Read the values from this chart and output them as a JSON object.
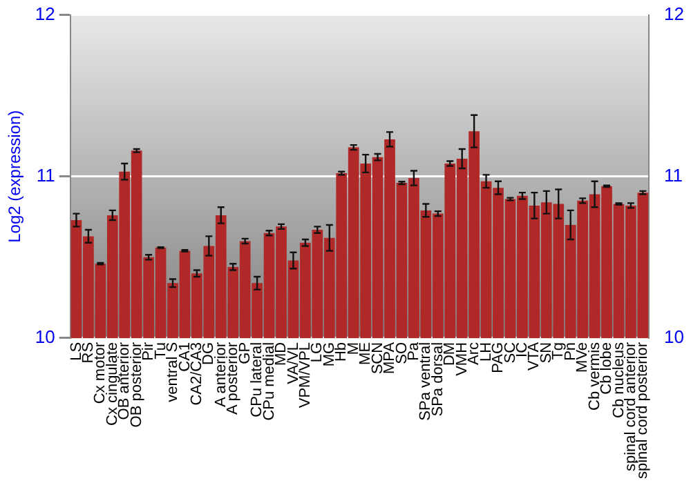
{
  "chart_data": {
    "type": "bar",
    "ylabel": "Log2 (expression)",
    "categories": [
      "LS",
      "RS",
      "Cx motor",
      "Cx cingulate",
      "OB anterior",
      "OB posterior",
      "Pir",
      "Tu",
      "ventral S",
      "CA1",
      "CA2/CA3",
      "DG",
      "A anterior",
      "A posterior",
      "GP",
      "CPu lateral",
      "CPu medial",
      "MD",
      "VA/VL",
      "VPM/VPL",
      "LG",
      "MG",
      "Hb",
      "M",
      "ME",
      "SCN",
      "MPA",
      "SO",
      "Pa",
      "SPa ventral",
      "SPa dorsal",
      "DM",
      "VMH",
      "Arc",
      "LH",
      "PAG",
      "SC",
      "IC",
      "VTA",
      "SN",
      "Tg",
      "Pn",
      "MVe",
      "Cb vermis",
      "Cb lobe",
      "Cb nucleus",
      "spinal cord anterior",
      "spinal cord posterior"
    ],
    "values": [
      10.73,
      10.63,
      10.46,
      10.76,
      11.03,
      11.16,
      10.5,
      10.56,
      10.34,
      10.54,
      10.4,
      10.57,
      10.76,
      10.44,
      10.6,
      10.34,
      10.65,
      10.69,
      10.48,
      10.59,
      10.67,
      10.62,
      11.02,
      11.18,
      11.08,
      11.12,
      11.23,
      10.96,
      10.99,
      10.79,
      10.77,
      11.08,
      11.11,
      11.28,
      10.97,
      10.93,
      10.86,
      10.88,
      10.82,
      10.84,
      10.83,
      10.7,
      10.85,
      10.89,
      10.94,
      10.83,
      10.82,
      10.9
    ],
    "errors": [
      0.04,
      0.04,
      0.005,
      0.03,
      0.05,
      0.01,
      0.015,
      0.003,
      0.025,
      0.005,
      0.02,
      0.06,
      0.05,
      0.02,
      0.015,
      0.04,
      0.015,
      0.015,
      0.05,
      0.02,
      0.02,
      0.08,
      0.01,
      0.015,
      0.055,
      0.02,
      0.045,
      0.008,
      0.045,
      0.04,
      0.015,
      0.015,
      0.06,
      0.1,
      0.04,
      0.04,
      0.008,
      0.02,
      0.08,
      0.07,
      0.09,
      0.09,
      0.015,
      0.08,
      0.005,
      0.005,
      0.015,
      0.01
    ],
    "color": "#b02828",
    "ylim": [
      10,
      12
    ],
    "yticks": [
      10,
      11,
      12
    ],
    "y2lim": [
      10,
      12
    ],
    "y2ticks": [
      10,
      11,
      12
    ],
    "grid": "y",
    "legend": false
  }
}
